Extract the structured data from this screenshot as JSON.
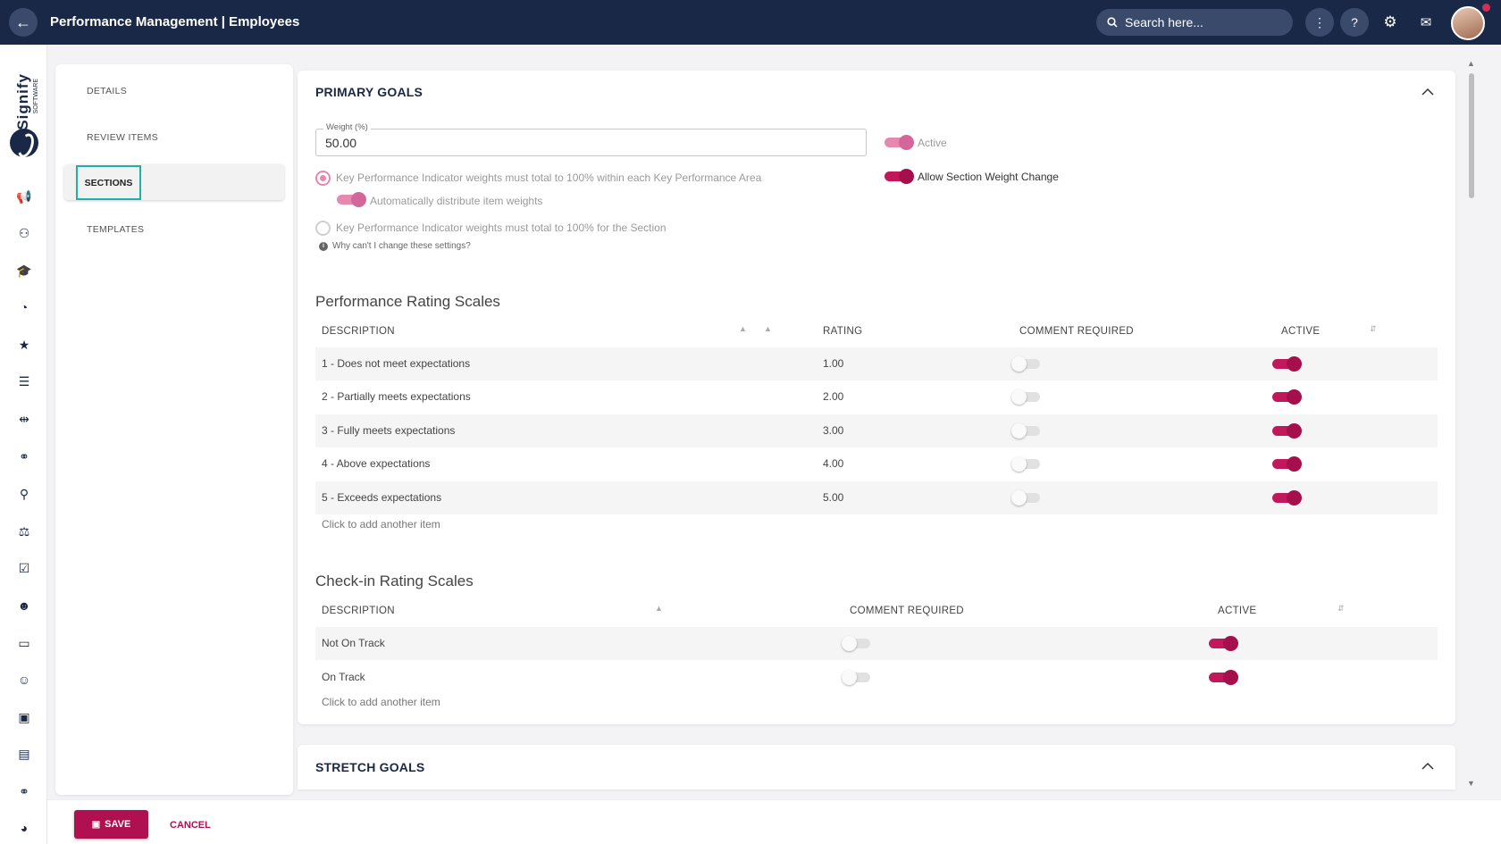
{
  "header": {
    "title": "Performance Management | Employees",
    "search_placeholder": "Search here..."
  },
  "brand": {
    "name": "Signify",
    "sub": "SOFTWARE"
  },
  "subnav": {
    "items": [
      "DETAILS",
      "REVIEW ITEMS",
      "SECTIONS",
      "TEMPLATES"
    ],
    "active": "SECTIONS"
  },
  "primary": {
    "title": "PRIMARY GOALS",
    "weight_label": "Weight (%)",
    "weight_value": "50.00",
    "active_label": "Active",
    "allow_label": "Allow Section Weight Change",
    "option1": "Key Performance Indicator weights must total to 100% within each Key Performance Area",
    "auto_distribute": "Automatically distribute item weights",
    "option2": "Key Performance Indicator weights must total to 100% for the Section",
    "why_note": "Why can't I change these settings?"
  },
  "perf": {
    "title": "Performance Rating Scales",
    "headers": {
      "description": "DESCRIPTION",
      "rating": "RATING",
      "comment": "COMMENT REQUIRED",
      "active": "ACTIVE"
    },
    "rows": [
      {
        "description": "1 - Does not meet expectations",
        "rating": "1.00",
        "comment_required": false,
        "active": true
      },
      {
        "description": "2 - Partially meets expectations",
        "rating": "2.00",
        "comment_required": false,
        "active": true
      },
      {
        "description": "3 - Fully meets expectations",
        "rating": "3.00",
        "comment_required": false,
        "active": true
      },
      {
        "description": "4 - Above expectations",
        "rating": "4.00",
        "comment_required": false,
        "active": true
      },
      {
        "description": "5 - Exceeds expectations",
        "rating": "5.00",
        "comment_required": false,
        "active": true
      }
    ],
    "add_item": "Click to add another item"
  },
  "checkin": {
    "title": "Check-in Rating Scales",
    "headers": {
      "description": "DESCRIPTION",
      "comment": "COMMENT REQUIRED",
      "active": "ACTIVE"
    },
    "rows": [
      {
        "description": "Not On Track",
        "comment_required": false,
        "active": true
      },
      {
        "description": "On Track",
        "comment_required": false,
        "active": true
      }
    ],
    "add_item": "Click to add another item"
  },
  "stretch": {
    "title": "STRETCH GOALS"
  },
  "footer": {
    "save": "SAVE",
    "cancel": "CANCEL"
  },
  "colors": {
    "navy": "#1a2847",
    "accent": "#b0104f",
    "highlight": "#1fb0a8"
  },
  "icons": [
    "megaphone-icon",
    "user-tree-icon",
    "graduation-icon",
    "gauge-icon",
    "star-icon",
    "sliders-icon",
    "signpost-icon",
    "handshake-icon",
    "user-check-icon",
    "scale-icon",
    "checklist-icon",
    "user-group-icon",
    "laptop-icon",
    "add-user-icon",
    "id-badge-icon",
    "chart-icon",
    "handshake-icon",
    "pie-chart-icon"
  ]
}
